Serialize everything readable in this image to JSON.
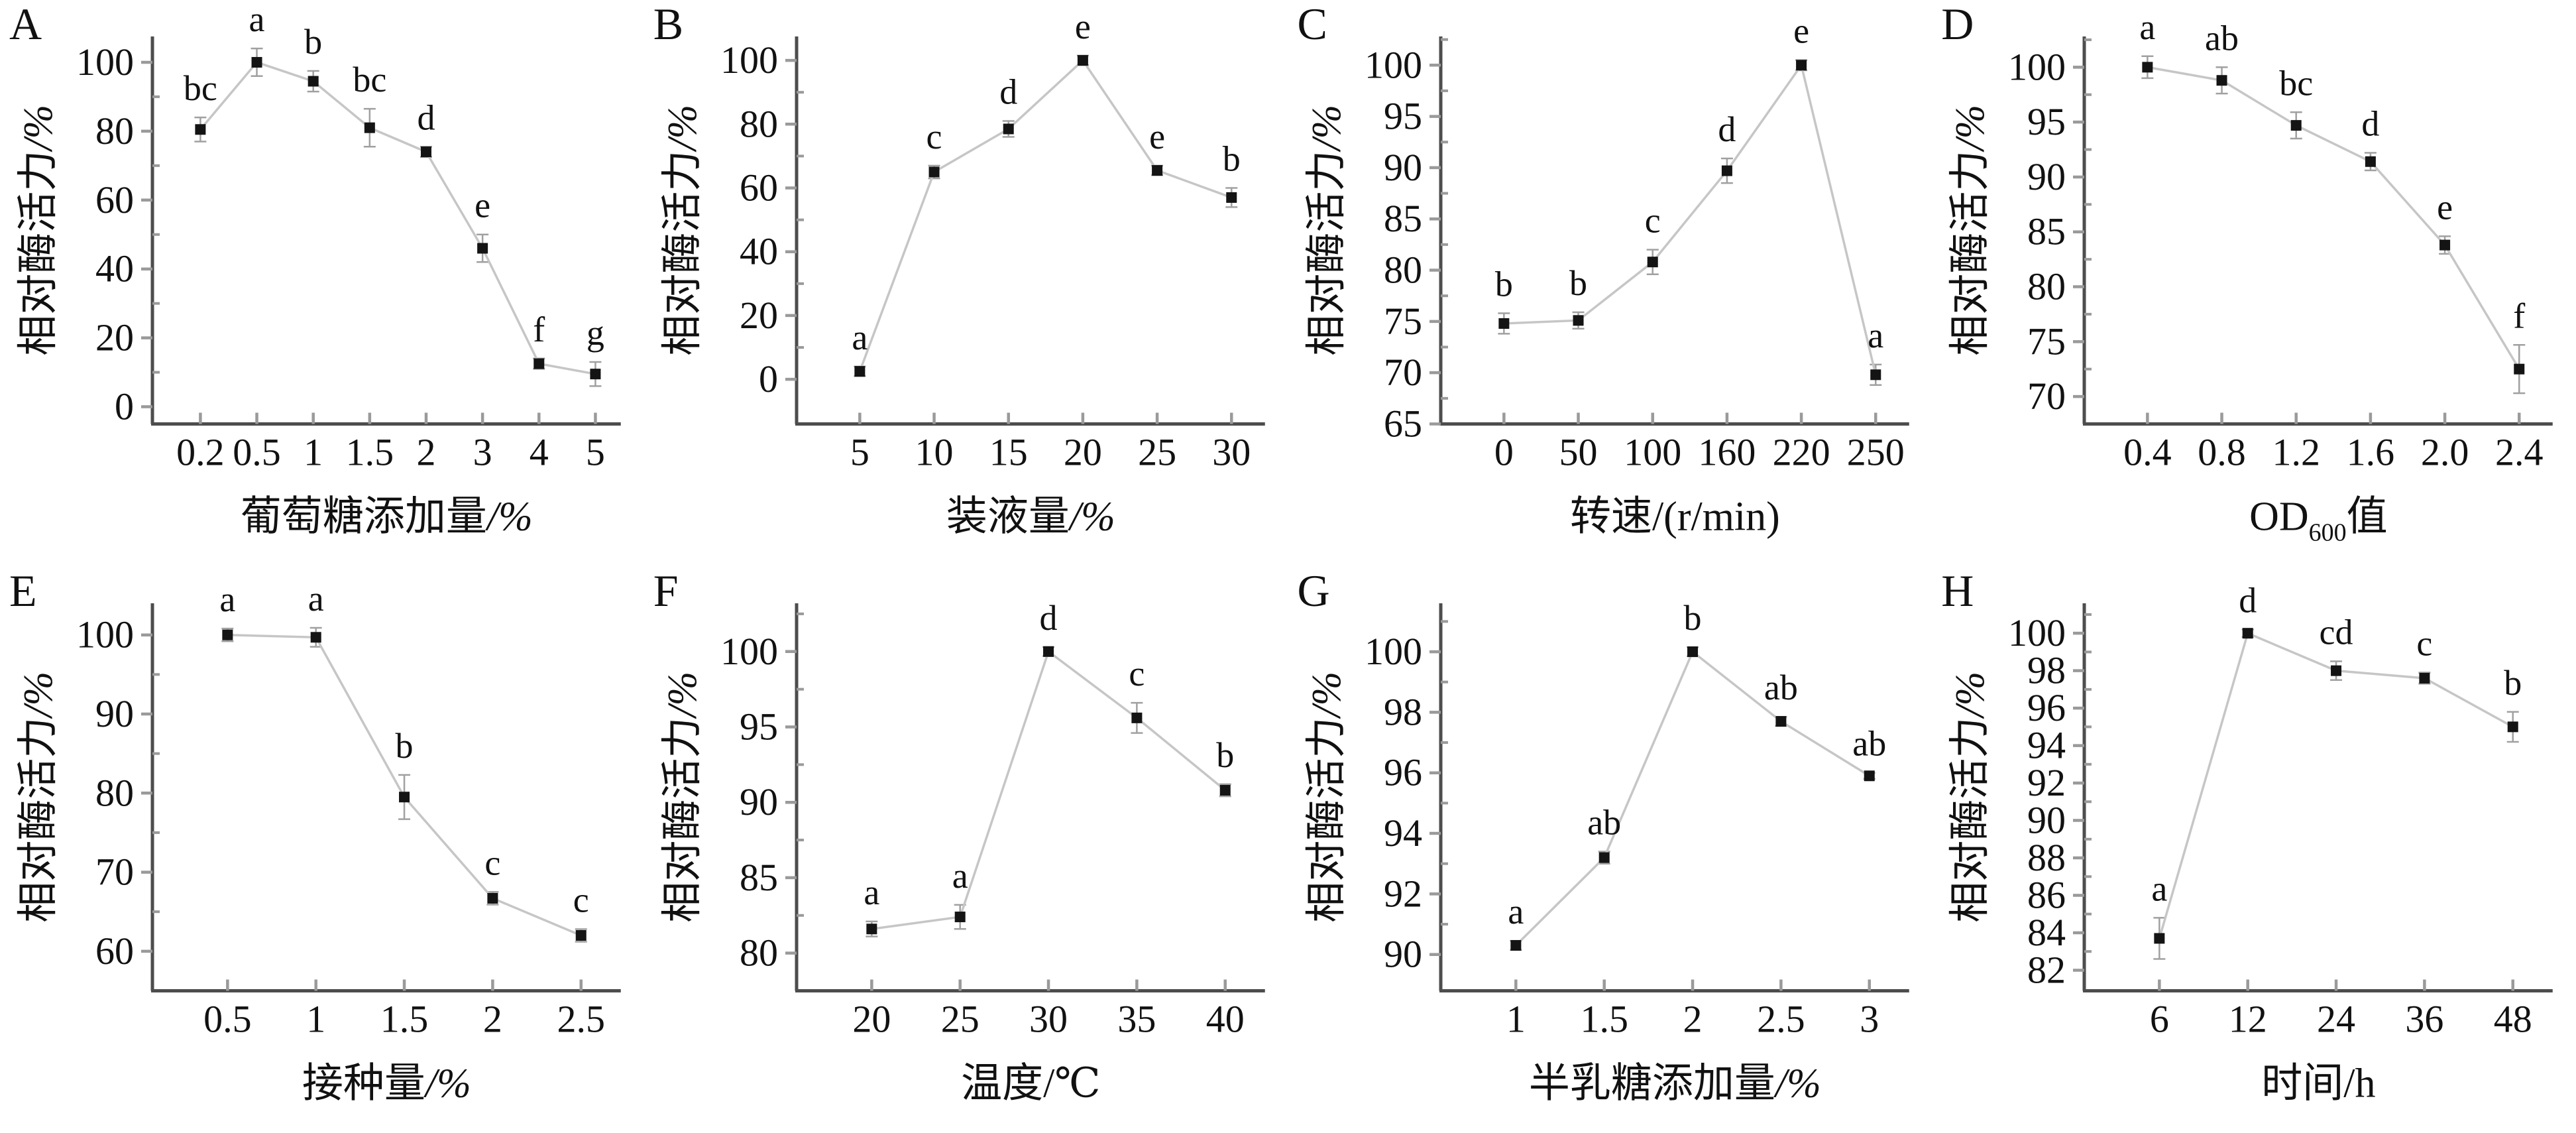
{
  "figure": {
    "background": "#ffffff",
    "ylabel_main": "相对酶活力",
    "ylabel_unit": "/%",
    "colors": {
      "axis": "#4d4d4d",
      "tick": "#9a9a9a",
      "line": "#c6c6c6",
      "marker": "#141414",
      "error": "#a0a0a0",
      "text": "#111111"
    }
  },
  "chart_data": [
    {
      "panel": "A",
      "type": "line",
      "xlabel": "葡萄糖添加量/%",
      "xlabel_parts": [
        {
          "t": "葡萄糖添加量"
        },
        {
          "t": "/%",
          "italic": true
        }
      ],
      "ylabel": "相对酶活力/%",
      "categories": [
        "0.2",
        "0.5",
        "1",
        "1.5",
        "2",
        "3",
        "4",
        "5"
      ],
      "values": [
        80.5,
        100,
        94.5,
        81,
        74,
        46,
        12.5,
        9.5
      ],
      "errors": [
        3.5,
        4,
        3,
        5.5,
        1.5,
        4,
        1.5,
        3.5
      ],
      "sig_labels": [
        "bc",
        "a",
        "b",
        "bc",
        "d",
        "e",
        "f",
        "g"
      ],
      "yticks": [
        0,
        20,
        40,
        60,
        80,
        100
      ],
      "minor_step": 10,
      "ylim": [
        -5,
        107.5
      ]
    },
    {
      "panel": "B",
      "type": "line",
      "xlabel": "装液量/%",
      "xlabel_parts": [
        {
          "t": "装液量"
        },
        {
          "t": "/%",
          "italic": true
        }
      ],
      "ylabel": "相对酶活力/%",
      "categories": [
        "5",
        "10",
        "15",
        "20",
        "25",
        "30"
      ],
      "values": [
        2.5,
        65,
        78.5,
        100,
        65.5,
        57
      ],
      "errors": [
        1.5,
        2,
        2.5,
        1.5,
        1.5,
        3
      ],
      "sig_labels": [
        "a",
        "c",
        "d",
        "e",
        "e",
        "b"
      ],
      "yticks": [
        0,
        20,
        40,
        60,
        80,
        100
      ],
      "minor_step": 10,
      "ylim": [
        -14,
        107.5
      ]
    },
    {
      "panel": "C",
      "type": "line",
      "xlabel": "转速/(r/min)",
      "xlabel_parts": [
        {
          "t": "转速/(r/min)"
        }
      ],
      "ylabel": "相对酶活力/%",
      "categories": [
        "0",
        "50",
        "100",
        "160",
        "220",
        "250"
      ],
      "values": [
        74.8,
        75.1,
        80.8,
        89.7,
        100,
        69.8
      ],
      "errors": [
        1.0,
        0.8,
        1.2,
        1.2,
        0.5,
        1.0
      ],
      "sig_labels": [
        "b",
        "b",
        "c",
        "d",
        "e",
        "a"
      ],
      "yticks": [
        65,
        70,
        75,
        80,
        85,
        90,
        95,
        100
      ],
      "minor_step": 2.5,
      "ylim": [
        65,
        102.8
      ]
    },
    {
      "panel": "D",
      "type": "line",
      "xlabel": "OD600值",
      "xlabel_parts": [
        {
          "t": "OD"
        },
        {
          "t": "600",
          "sub": true
        },
        {
          "t": "值"
        }
      ],
      "ylabel": "相对酶活力/%",
      "categories": [
        "0.4",
        "0.8",
        "1.2",
        "1.6",
        "2.0",
        "2.4"
      ],
      "values": [
        100,
        98.8,
        94.7,
        91.4,
        83.8,
        72.5
      ],
      "errors": [
        1.0,
        1.2,
        1.2,
        0.8,
        0.8,
        2.2
      ],
      "sig_labels": [
        "a",
        "ab",
        "bc",
        "d",
        "e",
        "f"
      ],
      "yticks": [
        70,
        75,
        80,
        85,
        90,
        95,
        100
      ],
      "minor_step": 2.5,
      "ylim": [
        67.5,
        102.8
      ]
    },
    {
      "panel": "E",
      "type": "line",
      "xlabel": "接种量/%",
      "xlabel_parts": [
        {
          "t": "接种量"
        },
        {
          "t": "/%",
          "italic": true
        }
      ],
      "ylabel": "相对酶活力/%",
      "categories": [
        "0.5",
        "1",
        "1.5",
        "2",
        "2.5"
      ],
      "values": [
        100,
        99.7,
        79.5,
        66.7,
        62
      ],
      "errors": [
        0.8,
        1.2,
        2.8,
        0.8,
        0.8
      ],
      "sig_labels": [
        "a",
        "a",
        "b",
        "c",
        "c"
      ],
      "yticks": [
        60,
        70,
        80,
        90,
        100
      ],
      "minor_step": 5,
      "ylim": [
        55,
        104
      ]
    },
    {
      "panel": "F",
      "type": "line",
      "xlabel": "温度/℃",
      "xlabel_parts": [
        {
          "t": "温度/℃"
        }
      ],
      "ylabel": "相对酶活力/%",
      "categories": [
        "20",
        "25",
        "30",
        "35",
        "40"
      ],
      "values": [
        81.6,
        82.4,
        100,
        95.6,
        90.8
      ],
      "errors": [
        0.5,
        0.8,
        0.3,
        1.0,
        0.4
      ],
      "sig_labels": [
        "a",
        "a",
        "d",
        "c",
        "b"
      ],
      "yticks": [
        80,
        85,
        90,
        95,
        100
      ],
      "minor_step": 2.5,
      "ylim": [
        77.5,
        103.2
      ]
    },
    {
      "panel": "G",
      "type": "line",
      "xlabel": "半乳糖添加量/%",
      "xlabel_parts": [
        {
          "t": "半乳糖添加量"
        },
        {
          "t": "/%",
          "italic": true
        }
      ],
      "ylabel": "相对酶活力/%",
      "categories": [
        "1",
        "1.5",
        "2",
        "2.5",
        "3"
      ],
      "values": [
        90.3,
        93.2,
        100,
        97.7,
        95.9
      ],
      "errors": [
        0.15,
        0.2,
        0.15,
        0.15,
        0.1
      ],
      "sig_labels": [
        "a",
        "ab",
        "b",
        "ab",
        "ab"
      ],
      "yticks": [
        90,
        92,
        94,
        96,
        98,
        100
      ],
      "minor_step": 1,
      "ylim": [
        88.8,
        101.6
      ]
    },
    {
      "panel": "H",
      "type": "line",
      "xlabel": "时间/h",
      "xlabel_parts": [
        {
          "t": "时间/h"
        }
      ],
      "ylabel": "相对酶活力/%",
      "categories": [
        "6",
        "12",
        "24",
        "36",
        "48"
      ],
      "values": [
        83.7,
        100,
        98.0,
        97.6,
        95.0
      ],
      "errors": [
        1.1,
        0.2,
        0.5,
        0.3,
        0.8
      ],
      "sig_labels": [
        "a",
        "d",
        "cd",
        "c",
        "b"
      ],
      "yticks": [
        82,
        84,
        86,
        88,
        90,
        92,
        94,
        96,
        98,
        100
      ],
      "minor_step": 1,
      "ylim": [
        80.9,
        101.6
      ]
    }
  ]
}
